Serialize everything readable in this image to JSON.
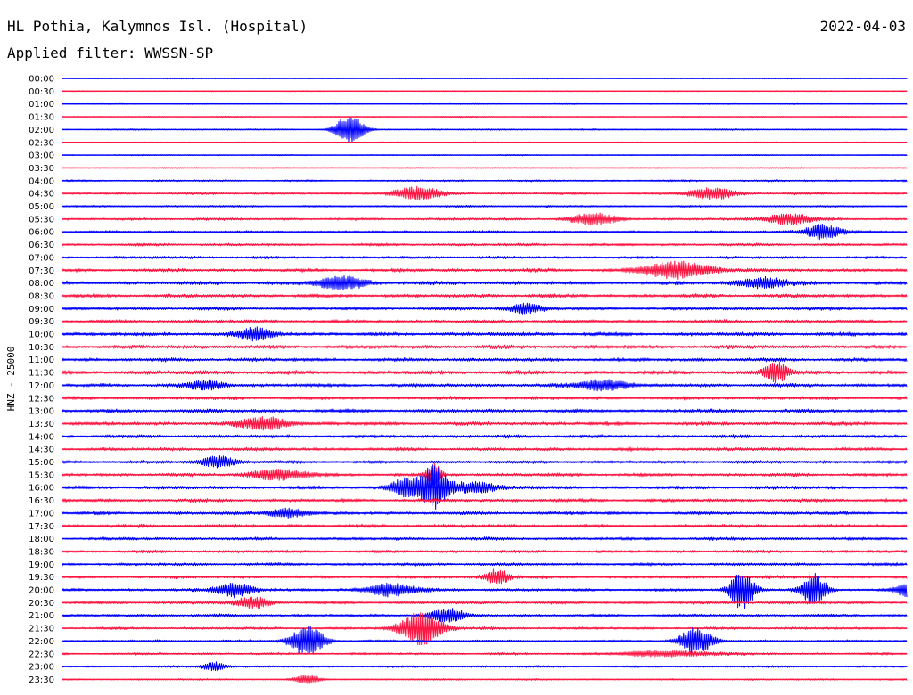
{
  "header": {
    "station": "HL Pothia, Kalymnos Isl. (Hospital)",
    "date": "2022-04-03",
    "filter": "Applied filter: WWSSN-SP",
    "channel": "HNZ - 25000"
  },
  "colors": {
    "even_trace": "#0000ff",
    "odd_trace": "#ff1744",
    "background": "#ffffff"
  },
  "chart_data": {
    "type": "line",
    "title": "HL Pothia, Kalymnos Isl. (Hospital)",
    "subtitle": "Applied filter: WWSSN-SP",
    "ylabel": "HNZ - 25000",
    "date": "2022-04-03",
    "row_labels": [
      "00:00",
      "00:30",
      "01:00",
      "01:30",
      "02:00",
      "02:30",
      "03:00",
      "03:30",
      "04:00",
      "04:30",
      "05:00",
      "05:30",
      "06:00",
      "06:30",
      "07:00",
      "07:30",
      "08:00",
      "08:30",
      "09:00",
      "09:30",
      "10:00",
      "10:30",
      "11:00",
      "11:30",
      "12:00",
      "12:30",
      "13:00",
      "13:30",
      "14:00",
      "14:30",
      "15:00",
      "15:30",
      "16:00",
      "16:30",
      "17:00",
      "17:30",
      "18:00",
      "18:30",
      "19:00",
      "19:30",
      "20:00",
      "20:30",
      "21:00",
      "21:30",
      "22:00",
      "22:30",
      "23:00",
      "23:30"
    ],
    "row_duration_minutes": 30,
    "background_noise": [
      0.8,
      0.7,
      0.7,
      0.8,
      1.0,
      0.8,
      0.8,
      0.8,
      1.3,
      1.6,
      1.3,
      1.8,
      1.8,
      1.9,
      1.9,
      2.4,
      2.6,
      2.6,
      2.3,
      2.3,
      2.7,
      2.7,
      2.6,
      2.8,
      2.5,
      2.4,
      2.6,
      2.6,
      2.4,
      2.4,
      2.3,
      2.4,
      2.4,
      2.4,
      2.4,
      2.4,
      2.2,
      2.1,
      2.1,
      2.1,
      2.1,
      2.1,
      2.0,
      1.8,
      1.7,
      1.6,
      1.4,
      1.1
    ],
    "events": [
      {
        "row": 4,
        "t": 0.34,
        "amp": 16,
        "width": 0.012
      },
      {
        "row": 9,
        "t": 0.42,
        "amp": 7,
        "width": 0.02
      },
      {
        "row": 9,
        "t": 0.77,
        "amp": 6,
        "width": 0.02
      },
      {
        "row": 11,
        "t": 0.63,
        "amp": 6,
        "width": 0.02
      },
      {
        "row": 11,
        "t": 0.86,
        "amp": 6,
        "width": 0.02
      },
      {
        "row": 12,
        "t": 0.9,
        "amp": 8,
        "width": 0.015
      },
      {
        "row": 15,
        "t": 0.73,
        "amp": 9,
        "width": 0.03
      },
      {
        "row": 16,
        "t": 0.33,
        "amp": 7,
        "width": 0.02
      },
      {
        "row": 16,
        "t": 0.83,
        "amp": 6,
        "width": 0.02
      },
      {
        "row": 18,
        "t": 0.55,
        "amp": 5,
        "width": 0.015
      },
      {
        "row": 20,
        "t": 0.23,
        "amp": 7,
        "width": 0.015
      },
      {
        "row": 23,
        "t": 0.845,
        "amp": 11,
        "width": 0.01
      },
      {
        "row": 24,
        "t": 0.17,
        "amp": 5,
        "width": 0.015
      },
      {
        "row": 24,
        "t": 0.64,
        "amp": 6,
        "width": 0.02
      },
      {
        "row": 27,
        "t": 0.24,
        "amp": 7,
        "width": 0.02
      },
      {
        "row": 30,
        "t": 0.185,
        "amp": 6,
        "width": 0.015
      },
      {
        "row": 31,
        "t": 0.255,
        "amp": 5,
        "width": 0.025
      },
      {
        "row": 31,
        "t": 0.44,
        "amp": 12,
        "width": 0.006
      },
      {
        "row": 32,
        "t": 0.405,
        "amp": 10,
        "width": 0.012
      },
      {
        "row": 32,
        "t": 0.44,
        "amp": 24,
        "width": 0.012
      },
      {
        "row": 32,
        "t": 0.49,
        "amp": 6,
        "width": 0.02
      },
      {
        "row": 34,
        "t": 0.265,
        "amp": 5,
        "width": 0.015
      },
      {
        "row": 39,
        "t": 0.515,
        "amp": 9,
        "width": 0.01
      },
      {
        "row": 40,
        "t": 0.205,
        "amp": 8,
        "width": 0.015
      },
      {
        "row": 40,
        "t": 0.39,
        "amp": 7,
        "width": 0.02
      },
      {
        "row": 40,
        "t": 0.805,
        "amp": 22,
        "width": 0.01
      },
      {
        "row": 40,
        "t": 0.89,
        "amp": 18,
        "width": 0.01
      },
      {
        "row": 40,
        "t": 1.0,
        "amp": 7,
        "width": 0.01
      },
      {
        "row": 41,
        "t": 0.225,
        "amp": 6,
        "width": 0.015
      },
      {
        "row": 42,
        "t": 0.455,
        "amp": 7,
        "width": 0.015
      },
      {
        "row": 43,
        "t": 0.425,
        "amp": 18,
        "width": 0.018
      },
      {
        "row": 44,
        "t": 0.29,
        "amp": 16,
        "width": 0.014
      },
      {
        "row": 44,
        "t": 0.75,
        "amp": 14,
        "width": 0.014
      },
      {
        "row": 45,
        "t": 0.72,
        "amp": 3,
        "width": 0.04
      },
      {
        "row": 46,
        "t": 0.18,
        "amp": 5,
        "width": 0.01
      },
      {
        "row": 47,
        "t": 0.29,
        "amp": 5,
        "width": 0.01
      }
    ]
  }
}
